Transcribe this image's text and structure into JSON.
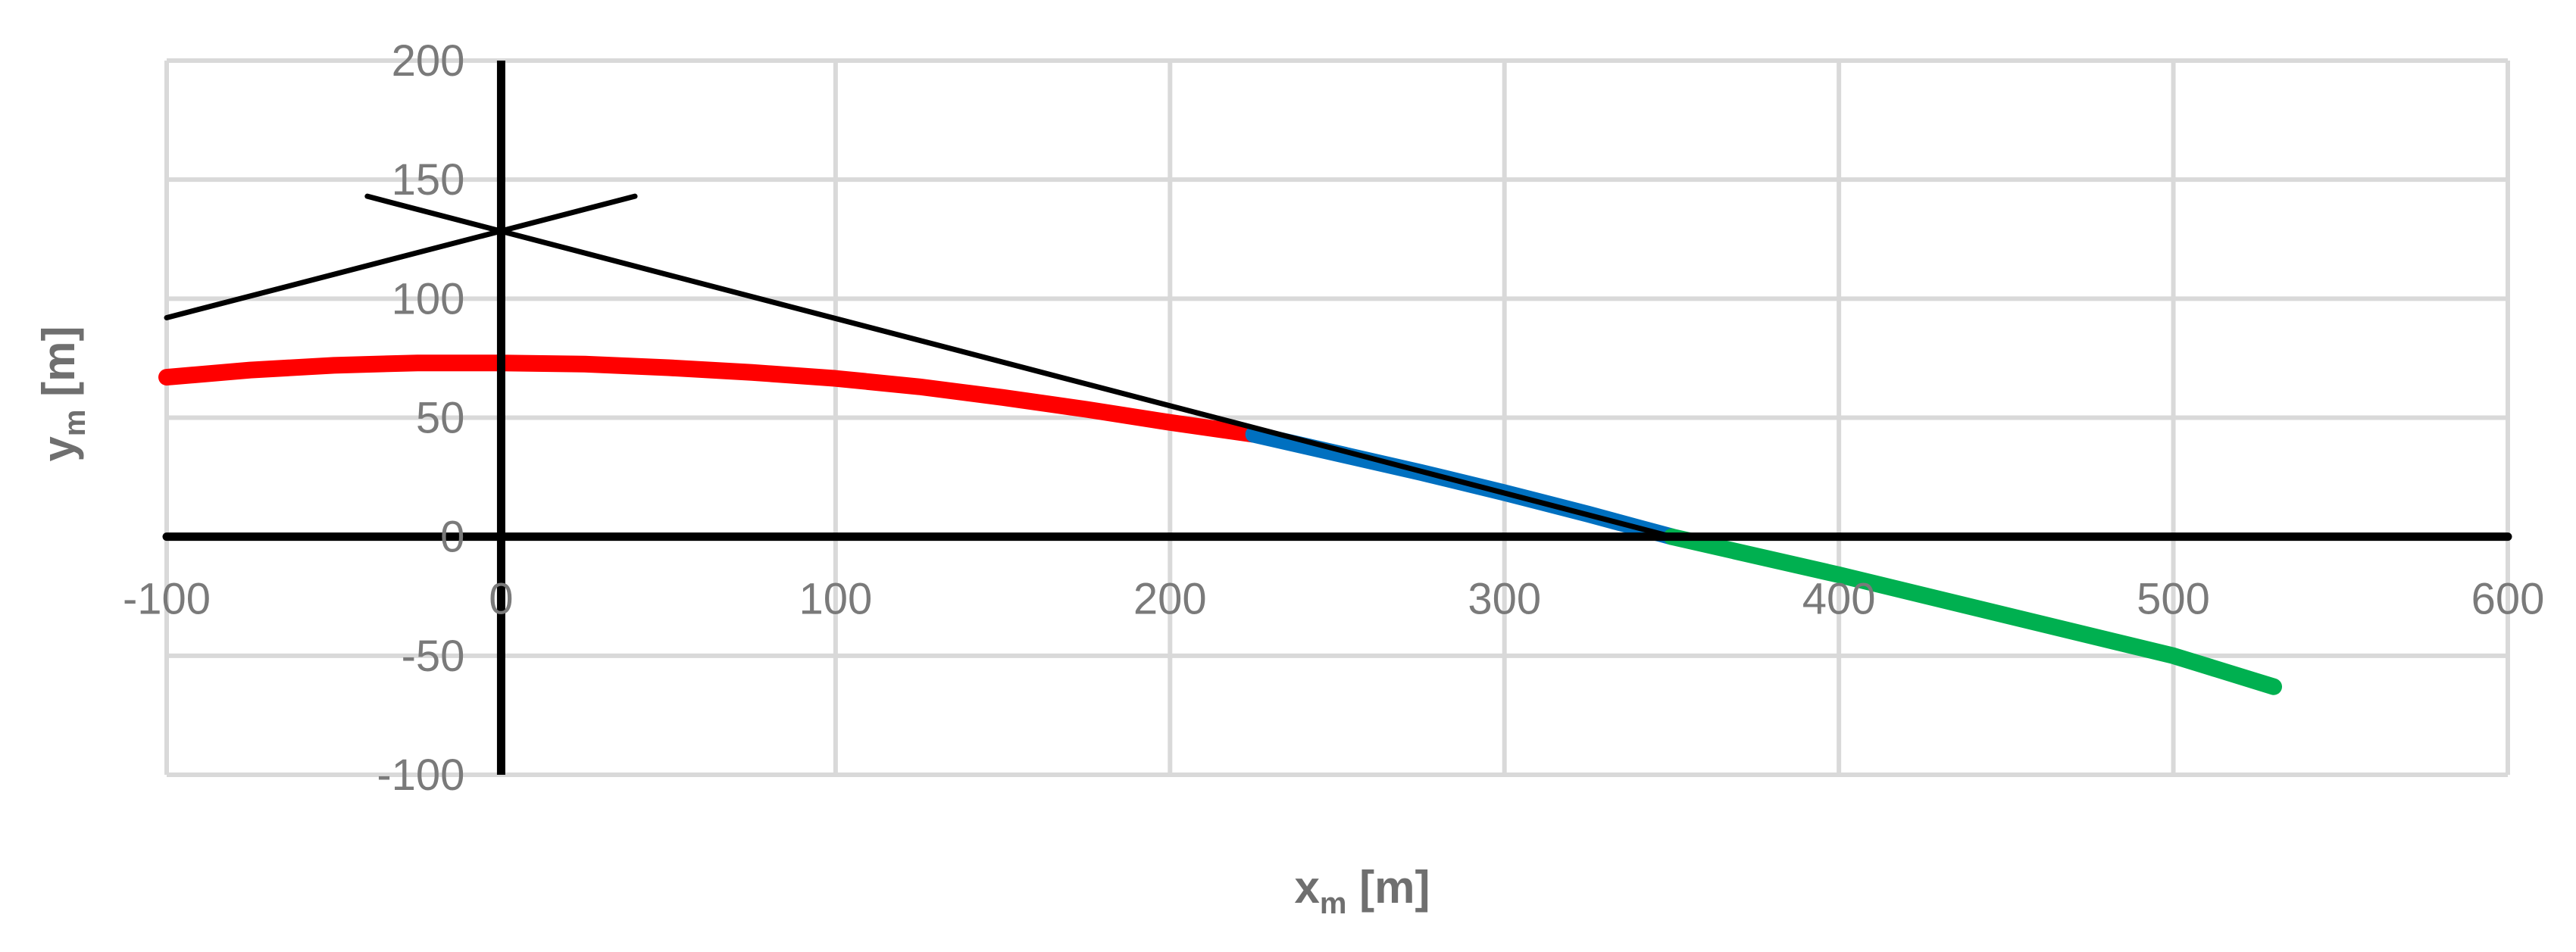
{
  "chart_data": {
    "type": "line",
    "title": "",
    "xlabel": {
      "main": "x",
      "sub": "m",
      "unit": " [m]"
    },
    "ylabel": {
      "main": "y",
      "sub": "m",
      "unit": " [m]"
    },
    "xlim": [
      -100,
      600
    ],
    "ylim": [
      -100,
      200
    ],
    "xticks": [
      -100,
      0,
      100,
      200,
      300,
      400,
      500,
      600
    ],
    "yticks": [
      -100,
      -50,
      0,
      50,
      100,
      150,
      200
    ],
    "xtick_labels": [
      "-100",
      "0",
      "100",
      "200",
      "300",
      "400",
      "500",
      "600"
    ],
    "ytick_labels": [
      "-100",
      "-50",
      "0",
      "50",
      "100",
      "150",
      "200"
    ],
    "grid": true,
    "series": [
      {
        "color": "#ff0000",
        "style": "thick",
        "x": [
          -100,
          -75,
          -50,
          -25,
          0,
          25,
          50,
          75,
          100,
          125,
          150,
          175,
          200,
          225
        ],
        "y": [
          67,
          70,
          72,
          73,
          73,
          72.5,
          71,
          69,
          66.5,
          63,
          58.5,
          53.5,
          48,
          43
        ]
      },
      {
        "color": "#0070c0",
        "style": "thick",
        "x": [
          225,
          250,
          275,
          300,
          325,
          350
        ],
        "y": [
          43,
          35,
          27,
          18.5,
          9.5,
          0
        ]
      },
      {
        "color": "#00b050",
        "style": "thick",
        "x": [
          350,
          400,
          450,
          500,
          530
        ],
        "y": [
          0,
          -16,
          -33,
          -50,
          -63
        ]
      },
      {
        "color": "#000000",
        "style": "thin",
        "x": [
          -40,
          350
        ],
        "y": [
          143,
          0
        ]
      },
      {
        "color": "#000000",
        "style": "thin",
        "x": [
          -100,
          40
        ],
        "y": [
          92,
          143
        ]
      }
    ],
    "reference_axes": {
      "x_zero": 0,
      "y_zero": 0,
      "x_zero_span": [
        -100,
        200
      ],
      "y_zero_span": [
        -100,
        600
      ]
    }
  }
}
